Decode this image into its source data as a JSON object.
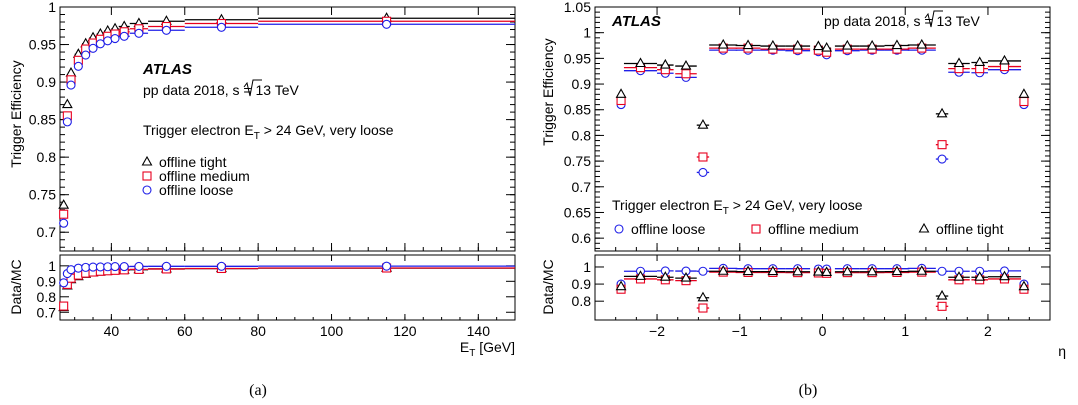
{
  "chart_data": [
    {
      "type": "scatter",
      "caption": "(a)",
      "xlabel": "E",
      "xlabel_sub": "T",
      "xlabel_unit": " [GeV]",
      "ylabel": "Trigger Efficiency",
      "ratio_ylabel": "Data/MC",
      "xlim": [
        26,
        150
      ],
      "ylim": [
        0.675,
        1.0
      ],
      "ratio_ylim": [
        0.65,
        1.07
      ],
      "xticks": [
        40,
        60,
        80,
        100,
        120,
        140
      ],
      "yticks": [
        0.7,
        0.75,
        0.8,
        0.85,
        0.9,
        0.95,
        1
      ],
      "ytick_labels": [
        "0.7",
        "0.75",
        "0.8",
        "0.85",
        "0.9",
        "0.95",
        "1"
      ],
      "ratio_yticks": [
        0.7,
        0.8,
        0.9,
        1
      ],
      "ratio_ytick_labels": [
        "0.7",
        "0.8",
        "0.9",
        "1"
      ],
      "annotations": {
        "experiment": "ATLAS",
        "dataset_prefix": "pp data 2018, ",
        "sqrt_s": "s",
        "energy": " = 13 TeV",
        "selection_prefix": "Trigger electron E",
        "selection_sub": "T",
        "selection_suffix": " > 24 GeV, very loose"
      },
      "legend": [
        "offline tight",
        "offline medium",
        "offline loose"
      ],
      "x": [
        27,
        28,
        29,
        31,
        33,
        35,
        37,
        39,
        41,
        43.5,
        47.5,
        55,
        70,
        115
      ],
      "xerr": [
        0.5,
        0.5,
        0.5,
        1,
        1,
        1,
        1,
        1,
        1,
        1.5,
        2.5,
        5,
        10,
        35
      ],
      "series": [
        {
          "name": "offline tight",
          "color": "#000000",
          "marker": "triangle",
          "values": [
            0.736,
            0.87,
            0.912,
            0.937,
            0.951,
            0.959,
            0.964,
            0.968,
            0.971,
            0.974,
            0.978,
            0.981,
            0.983,
            0.985
          ],
          "ratio": [
            0.73,
            0.87,
            0.91,
            0.93,
            0.945,
            0.955,
            0.96,
            0.965,
            0.968,
            0.972,
            0.975,
            0.98,
            0.982,
            0.985
          ]
        },
        {
          "name": "offline medium",
          "color": "#e8001f",
          "marker": "square",
          "values": [
            0.724,
            0.855,
            0.903,
            0.929,
            0.944,
            0.952,
            0.957,
            0.961,
            0.964,
            0.967,
            0.971,
            0.974,
            0.978,
            0.981
          ],
          "ratio": [
            0.74,
            0.88,
            0.92,
            0.94,
            0.953,
            0.96,
            0.965,
            0.968,
            0.971,
            0.974,
            0.977,
            0.98,
            0.983,
            0.986
          ]
        },
        {
          "name": "offline loose",
          "color": "#1f1fe8",
          "marker": "circle",
          "values": [
            0.712,
            0.847,
            0.896,
            0.921,
            0.936,
            0.945,
            0.951,
            0.955,
            0.958,
            0.961,
            0.965,
            0.969,
            0.973,
            0.977
          ],
          "ratio": [
            0.89,
            0.95,
            0.975,
            0.985,
            0.99,
            0.992,
            0.993,
            0.994,
            0.995,
            0.995,
            0.996,
            0.997,
            0.997,
            0.998
          ]
        }
      ]
    },
    {
      "type": "scatter",
      "caption": "(b)",
      "xlabel": "η",
      "ylabel": "Trigger Efficiency",
      "ratio_ylabel": "Data/MC",
      "xlim": [
        -2.75,
        2.75
      ],
      "ylim": [
        0.575,
        1.05
      ],
      "ratio_ylim": [
        0.69,
        1.07
      ],
      "xticks": [
        -2,
        -1,
        0,
        1,
        2
      ],
      "xtick_labels": [
        "−2",
        "−1",
        "0",
        "1",
        "2"
      ],
      "yticks": [
        0.6,
        0.65,
        0.7,
        0.75,
        0.8,
        0.85,
        0.9,
        0.95,
        1,
        1.05
      ],
      "ytick_labels": [
        "0.6",
        "0.65",
        "0.7",
        "0.75",
        "0.8",
        "0.85",
        "0.9",
        "0.95",
        "1",
        "1.05"
      ],
      "ratio_yticks": [
        0.8,
        0.9,
        1
      ],
      "ratio_ytick_labels": [
        "0.8",
        "0.9",
        "1"
      ],
      "annotations": {
        "experiment": "ATLAS",
        "dataset_prefix": "pp data 2018, ",
        "sqrt_s": "s",
        "energy": " = 13 TeV",
        "selection_prefix": "Trigger electron E",
        "selection_sub": "T",
        "selection_suffix": " > 24 GeV, very loose"
      },
      "legend": [
        "offline loose",
        "offline medium",
        "offline tight"
      ],
      "x": [
        -2.435,
        -2.2,
        -1.9,
        -1.65,
        -1.445,
        -1.2,
        -0.9,
        -0.6,
        -0.3,
        -0.05,
        0.05,
        0.3,
        0.6,
        0.9,
        1.2,
        1.445,
        1.65,
        1.9,
        2.2,
        2.435
      ],
      "xerr": [
        0.035,
        0.2,
        0.1,
        0.13,
        0.075,
        0.17,
        0.15,
        0.15,
        0.15,
        0.05,
        0.05,
        0.15,
        0.15,
        0.15,
        0.17,
        0.075,
        0.13,
        0.1,
        0.2,
        0.035
      ],
      "series": [
        {
          "name": "offline loose",
          "color": "#1f1fe8",
          "marker": "circle",
          "values": [
            0.86,
            0.926,
            0.921,
            0.913,
            0.728,
            0.966,
            0.966,
            0.966,
            0.965,
            0.963,
            0.957,
            0.965,
            0.966,
            0.966,
            0.966,
            0.754,
            0.923,
            0.922,
            0.928,
            0.86
          ],
          "ratio": [
            0.9,
            0.975,
            0.977,
            0.976,
            0.975,
            0.992,
            0.99,
            0.99,
            0.99,
            0.988,
            0.988,
            0.99,
            0.99,
            0.99,
            0.992,
            0.975,
            0.975,
            0.975,
            0.977,
            0.9
          ]
        },
        {
          "name": "offline medium",
          "color": "#e8001f",
          "marker": "square",
          "values": [
            0.868,
            0.932,
            0.928,
            0.92,
            0.758,
            0.97,
            0.97,
            0.968,
            0.968,
            0.966,
            0.962,
            0.968,
            0.968,
            0.968,
            0.97,
            0.782,
            0.93,
            0.93,
            0.934,
            0.866
          ],
          "ratio": [
            0.87,
            0.93,
            0.925,
            0.92,
            0.76,
            0.97,
            0.968,
            0.968,
            0.967,
            0.965,
            0.963,
            0.967,
            0.967,
            0.968,
            0.97,
            0.77,
            0.925,
            0.925,
            0.93,
            0.87
          ]
        },
        {
          "name": "offline tight",
          "color": "#000000",
          "marker": "triangle",
          "values": [
            0.88,
            0.94,
            0.937,
            0.935,
            0.82,
            0.976,
            0.975,
            0.974,
            0.974,
            0.973,
            0.97,
            0.974,
            0.974,
            0.975,
            0.976,
            0.842,
            0.94,
            0.942,
            0.945,
            0.88
          ],
          "ratio": [
            0.885,
            0.945,
            0.94,
            0.935,
            0.82,
            0.975,
            0.973,
            0.973,
            0.972,
            0.97,
            0.968,
            0.972,
            0.972,
            0.973,
            0.975,
            0.83,
            0.94,
            0.94,
            0.943,
            0.885
          ]
        }
      ]
    }
  ]
}
